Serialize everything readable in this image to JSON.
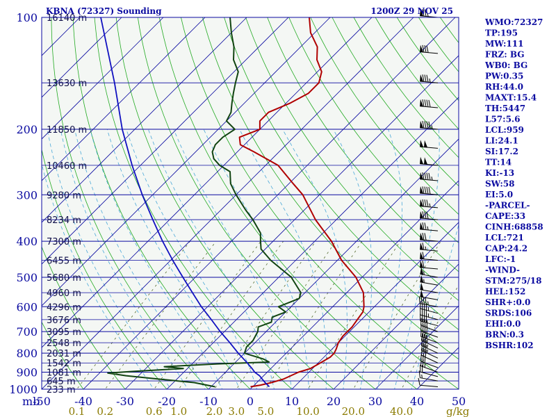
{
  "header": {
    "station": "KBNA (72327) Sounding",
    "time": "1200Z 29 NOV 25"
  },
  "colors": {
    "isobar": "#0a0aa0",
    "isotherm": "#0a0aa0",
    "dry_adiabat": "#22aa22",
    "moist_adiabat": "#4aa8d8",
    "mixing_ratio": "#556b2f",
    "temperature": "#b00000",
    "dewpoint": "#114411",
    "parcel": "#1010c0",
    "wind_barb": "#000000"
  },
  "chart_data": {
    "type": "line",
    "title": "KBNA (72327) Sounding",
    "subtitle": "1200Z 29 NOV 25",
    "xlabel": "",
    "ylabel": "mb",
    "xlim": [
      -50,
      50
    ],
    "ylim": [
      1000,
      100
    ],
    "pressure_ticks": [
      {
        "p": 100,
        "label": "100"
      },
      {
        "p": 200,
        "label": "200"
      },
      {
        "p": 300,
        "label": "300"
      },
      {
        "p": 400,
        "label": "400"
      },
      {
        "p": 500,
        "label": "500"
      },
      {
        "p": 600,
        "label": "600"
      },
      {
        "p": 700,
        "label": "700"
      },
      {
        "p": 800,
        "label": "800"
      },
      {
        "p": 900,
        "label": "900"
      },
      {
        "p": 1000,
        "label": "1000"
      }
    ],
    "temperature_ticks": [
      {
        "t": -50,
        "label": "-50"
      },
      {
        "t": -40,
        "label": "-40"
      },
      {
        "t": -30,
        "label": "-30"
      },
      {
        "t": -20,
        "label": "-20"
      },
      {
        "t": -10,
        "label": "-10"
      },
      {
        "t": 0,
        "label": "0"
      },
      {
        "t": 10,
        "label": "10"
      },
      {
        "t": 20,
        "label": "20"
      },
      {
        "t": 30,
        "label": "30"
      },
      {
        "t": 40,
        "label": "40"
      },
      {
        "t": 50,
        "label": "50"
      }
    ],
    "mixing_ratio_labels": [
      {
        "w": 0.1,
        "label": "0.1"
      },
      {
        "w": 0.2,
        "label": "0.2"
      },
      {
        "w": 0.6,
        "label": "0.6"
      },
      {
        "w": 1.0,
        "label": "1.0"
      },
      {
        "w": 2.0,
        "label": "2.0"
      },
      {
        "w": 3.0,
        "label": "3.0"
      },
      {
        "w": 5.0,
        "label": "5.0"
      },
      {
        "w": 10.0,
        "label": "10.0"
      },
      {
        "w": 20.0,
        "label": "20.0"
      },
      {
        "w": 40.0,
        "label": "40.0"
      }
    ],
    "mixing_ratio_unit": "g/kg",
    "height_labels": [
      {
        "p": 100,
        "label": "16140 m"
      },
      {
        "p": 150,
        "label": "13630 m"
      },
      {
        "p": 200,
        "label": "11850 m"
      },
      {
        "p": 250,
        "label": "10460 m"
      },
      {
        "p": 300,
        "label": "9280 m"
      },
      {
        "p": 350,
        "label": "8234 m"
      },
      {
        "p": 400,
        "label": "7300 m"
      },
      {
        "p": 450,
        "label": "6455 m"
      },
      {
        "p": 500,
        "label": "5680 m"
      },
      {
        "p": 550,
        "label": "4960 m"
      },
      {
        "p": 600,
        "label": "4296 m"
      },
      {
        "p": 650,
        "label": "3676 m"
      },
      {
        "p": 700,
        "label": "3095 m"
      },
      {
        "p": 750,
        "label": "2548 m"
      },
      {
        "p": 800,
        "label": "2031 m"
      },
      {
        "p": 850,
        "label": "1542 m"
      },
      {
        "p": 900,
        "label": "1081 m"
      },
      {
        "p": 950,
        "label": "645 m"
      },
      {
        "p": 1000,
        "label": "233 m"
      }
    ],
    "series": [
      {
        "key": "temperature",
        "points": [
          [
            985,
            -0.5
          ],
          [
            975,
            1.5
          ],
          [
            960,
            3.5
          ],
          [
            940,
            5.5
          ],
          [
            920,
            6.5
          ],
          [
            900,
            7.5
          ],
          [
            880,
            9.5
          ],
          [
            850,
            10.5
          ],
          [
            820,
            11.5
          ],
          [
            800,
            11.5
          ],
          [
            780,
            11
          ],
          [
            750,
            10
          ],
          [
            720,
            9.5
          ],
          [
            700,
            9.5
          ],
          [
            680,
            9.5
          ],
          [
            650,
            9
          ],
          [
            620,
            8.5
          ],
          [
            600,
            7.5
          ],
          [
            550,
            4
          ],
          [
            500,
            -1.5
          ],
          [
            450,
            -9
          ],
          [
            400,
            -16
          ],
          [
            350,
            -25
          ],
          [
            300,
            -34
          ],
          [
            280,
            -39
          ],
          [
            250,
            -47
          ],
          [
            230,
            -56
          ],
          [
            220,
            -61
          ],
          [
            210,
            -63
          ],
          [
            200,
            -60
          ],
          [
            190,
            -62
          ],
          [
            180,
            -62
          ],
          [
            170,
            -59
          ],
          [
            160,
            -57
          ],
          [
            150,
            -57
          ],
          [
            140,
            -59
          ],
          [
            130,
            -63
          ],
          [
            120,
            -66
          ],
          [
            110,
            -71
          ],
          [
            100,
            -75
          ]
        ]
      },
      {
        "key": "dewpoint",
        "points": [
          [
            985,
            -9
          ],
          [
            960,
            -15
          ],
          [
            940,
            -24
          ],
          [
            920,
            -33
          ],
          [
            905,
            -38
          ],
          [
            895,
            -32
          ],
          [
            880,
            -21
          ],
          [
            870,
            -26
          ],
          [
            855,
            -14
          ],
          [
            845,
            -2
          ],
          [
            830,
            -4
          ],
          [
            800,
            -10
          ],
          [
            770,
            -11
          ],
          [
            740,
            -11
          ],
          [
            700,
            -12
          ],
          [
            680,
            -13
          ],
          [
            660,
            -11
          ],
          [
            640,
            -12
          ],
          [
            620,
            -10
          ],
          [
            600,
            -13
          ],
          [
            570,
            -10
          ],
          [
            550,
            -11
          ],
          [
            500,
            -17
          ],
          [
            450,
            -26
          ],
          [
            420,
            -31
          ],
          [
            400,
            -33
          ],
          [
            380,
            -35
          ],
          [
            350,
            -40
          ],
          [
            330,
            -44
          ],
          [
            300,
            -50
          ],
          [
            280,
            -54
          ],
          [
            260,
            -57
          ],
          [
            250,
            -61
          ],
          [
            240,
            -64
          ],
          [
            230,
            -66
          ],
          [
            220,
            -67
          ],
          [
            210,
            -67
          ],
          [
            200,
            -66
          ],
          [
            190,
            -70
          ],
          [
            180,
            -71
          ],
          [
            170,
            -73
          ],
          [
            160,
            -75
          ],
          [
            150,
            -77
          ],
          [
            140,
            -79
          ],
          [
            130,
            -83
          ],
          [
            120,
            -86
          ],
          [
            110,
            -90
          ],
          [
            100,
            -94
          ]
        ]
      },
      {
        "key": "parcel",
        "points": [
          [
            985,
            4
          ],
          [
            960,
            2
          ],
          [
            940,
            0.5
          ],
          [
            920,
            -1
          ],
          [
            900,
            -3
          ],
          [
            880,
            -4.5
          ],
          [
            850,
            -7
          ],
          [
            800,
            -11.5
          ],
          [
            750,
            -16
          ],
          [
            700,
            -21
          ],
          [
            650,
            -26
          ],
          [
            600,
            -31.5
          ],
          [
            550,
            -37
          ],
          [
            500,
            -43
          ],
          [
            450,
            -49.5
          ],
          [
            400,
            -56.5
          ],
          [
            350,
            -64
          ],
          [
            300,
            -72.5
          ],
          [
            250,
            -82
          ],
          [
            200,
            -93
          ],
          [
            150,
            -106
          ],
          [
            100,
            -125
          ]
        ]
      }
    ],
    "wind_barbs": [
      {
        "p": 985,
        "dir": 275,
        "spd": 10
      },
      {
        "p": 950,
        "dir": 280,
        "spd": 15
      },
      {
        "p": 925,
        "dir": 285,
        "spd": 20
      },
      {
        "p": 900,
        "dir": 290,
        "spd": 25
      },
      {
        "p": 875,
        "dir": 290,
        "spd": 30
      },
      {
        "p": 850,
        "dir": 295,
        "spd": 30
      },
      {
        "p": 825,
        "dir": 295,
        "spd": 35
      },
      {
        "p": 800,
        "dir": 295,
        "spd": 35
      },
      {
        "p": 775,
        "dir": 295,
        "spd": 35
      },
      {
        "p": 750,
        "dir": 290,
        "spd": 35
      },
      {
        "p": 725,
        "dir": 290,
        "spd": 40
      },
      {
        "p": 700,
        "dir": 290,
        "spd": 40
      },
      {
        "p": 675,
        "dir": 285,
        "spd": 40
      },
      {
        "p": 650,
        "dir": 285,
        "spd": 45
      },
      {
        "p": 625,
        "dir": 285,
        "spd": 45
      },
      {
        "p": 600,
        "dir": 280,
        "spd": 45
      },
      {
        "p": 575,
        "dir": 280,
        "spd": 50
      },
      {
        "p": 550,
        "dir": 280,
        "spd": 50
      },
      {
        "p": 525,
        "dir": 280,
        "spd": 55
      },
      {
        "p": 500,
        "dir": 280,
        "spd": 55
      },
      {
        "p": 475,
        "dir": 275,
        "spd": 60
      },
      {
        "p": 450,
        "dir": 275,
        "spd": 60
      },
      {
        "p": 425,
        "dir": 275,
        "spd": 65
      },
      {
        "p": 400,
        "dir": 275,
        "spd": 70
      },
      {
        "p": 375,
        "dir": 275,
        "spd": 75
      },
      {
        "p": 350,
        "dir": 275,
        "spd": 80
      },
      {
        "p": 325,
        "dir": 275,
        "spd": 85
      },
      {
        "p": 300,
        "dir": 275,
        "spd": 90
      },
      {
        "p": 275,
        "dir": 275,
        "spd": 95
      },
      {
        "p": 250,
        "dir": 275,
        "spd": 100
      },
      {
        "p": 225,
        "dir": 275,
        "spd": 100
      },
      {
        "p": 200,
        "dir": 275,
        "spd": 95
      },
      {
        "p": 175,
        "dir": 275,
        "spd": 90
      },
      {
        "p": 150,
        "dir": 275,
        "spd": 85
      },
      {
        "p": 125,
        "dir": 275,
        "spd": 80
      },
      {
        "p": 100,
        "dir": 275,
        "spd": 75
      }
    ],
    "grid": true,
    "legend": "none"
  },
  "indices": [
    "WMO:72327",
    "TP:195",
    "MW:111",
    "FRZ: BG",
    "WB0: BG",
    "PW:0.35",
    "RH:44.0",
    "MAXT:15.4",
    "TH:5447",
    "L57:5.6",
    "LCL:959",
    "LI:24.1",
    "SI:17.2",
    "TT:14",
    "KI:-13",
    "SW:58",
    "EI:5.0",
    "-PARCEL-",
    "CAPE:33",
    "CINH:68858",
    "LCL:721",
    "CAP:24.2",
    "LFC:-1",
    "-WIND-",
    "STM:275/18",
    "HEL:152",
    "SHR+:0.0",
    "SRDS:106",
    "EHI:0.0",
    "BRN:0.3",
    "BSHR:102"
  ]
}
